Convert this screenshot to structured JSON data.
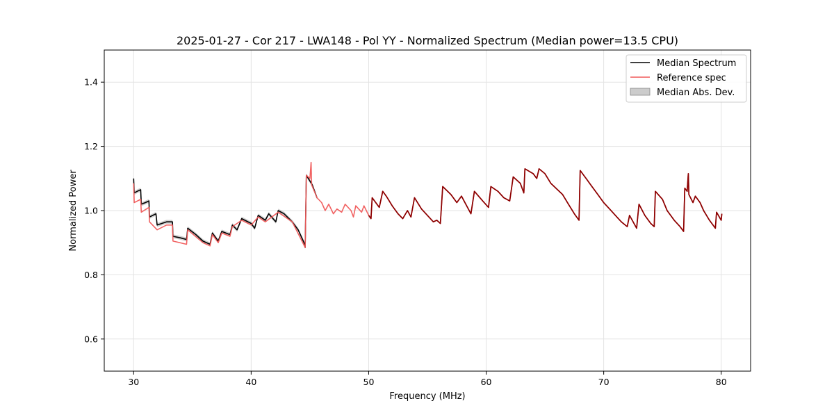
{
  "chart_data": {
    "type": "line",
    "title": "2025-01-27 - Cor 217 - LWA148 - Pol YY - Normalized Spectrum (Median power=13.5 CPU)",
    "xlabel": "Frequency (MHz)",
    "ylabel": "Normalized Power",
    "xlim": [
      27.5,
      82.5
    ],
    "ylim": [
      0.5,
      1.5
    ],
    "xticks": [
      30,
      40,
      50,
      60,
      70,
      80
    ],
    "yticks": [
      0.6,
      0.8,
      1.0,
      1.2,
      1.4
    ],
    "xtick_labels": [
      "30",
      "40",
      "50",
      "60",
      "70",
      "80"
    ],
    "ytick_labels": [
      "0.6",
      "0.8",
      "1.0",
      "1.2",
      "1.4"
    ],
    "grid": true,
    "legend_position": "top-right",
    "legend": {
      "median": "Median Spectrum",
      "reference": "Reference spec",
      "mad": "Median Abs. Dev."
    },
    "colors": {
      "median": "#000000",
      "reference": "#f05a5a",
      "mad_fill": "#aaaaaa",
      "overlap": "#8b0000"
    },
    "series": [
      {
        "name": "Median Spectrum",
        "points": [
          [
            30.0,
            1.1
          ],
          [
            30.05,
            1.055
          ],
          [
            30.3,
            1.06
          ],
          [
            30.6,
            1.065
          ],
          [
            30.65,
            1.02
          ],
          [
            31.0,
            1.025
          ],
          [
            31.3,
            1.03
          ],
          [
            31.35,
            0.98
          ],
          [
            31.9,
            0.99
          ],
          [
            32.0,
            0.955
          ],
          [
            32.8,
            0.965
          ],
          [
            33.3,
            0.965
          ],
          [
            33.35,
            0.92
          ],
          [
            34.0,
            0.915
          ],
          [
            34.5,
            0.91
          ],
          [
            34.6,
            0.945
          ],
          [
            35.3,
            0.925
          ],
          [
            35.9,
            0.905
          ],
          [
            36.5,
            0.895
          ],
          [
            36.7,
            0.93
          ],
          [
            37.2,
            0.905
          ],
          [
            37.5,
            0.935
          ],
          [
            38.2,
            0.925
          ],
          [
            38.4,
            0.955
          ],
          [
            38.8,
            0.94
          ],
          [
            39.2,
            0.975
          ],
          [
            40.0,
            0.96
          ],
          [
            40.3,
            0.945
          ],
          [
            40.6,
            0.985
          ],
          [
            41.2,
            0.97
          ],
          [
            41.5,
            0.99
          ],
          [
            42.1,
            0.965
          ],
          [
            42.3,
            1.0
          ],
          [
            42.8,
            0.99
          ],
          [
            43.5,
            0.965
          ],
          [
            44.0,
            0.94
          ],
          [
            44.5,
            0.9
          ],
          [
            44.6,
            0.885
          ],
          [
            44.7,
            1.11
          ],
          [
            45.2,
            1.08
          ],
          [
            45.6,
            1.04
          ]
        ]
      },
      {
        "name": "Reference spec",
        "points": [
          [
            30.0,
            1.085
          ],
          [
            30.05,
            1.025
          ],
          [
            30.6,
            1.035
          ],
          [
            30.65,
            0.995
          ],
          [
            31.3,
            1.01
          ],
          [
            31.35,
            0.965
          ],
          [
            32.0,
            0.94
          ],
          [
            32.8,
            0.955
          ],
          [
            33.3,
            0.955
          ],
          [
            33.35,
            0.905
          ],
          [
            34.5,
            0.895
          ],
          [
            34.6,
            0.94
          ],
          [
            35.9,
            0.9
          ],
          [
            36.5,
            0.89
          ],
          [
            36.7,
            0.925
          ],
          [
            37.2,
            0.9
          ],
          [
            37.5,
            0.93
          ],
          [
            38.2,
            0.92
          ],
          [
            38.4,
            0.95
          ],
          [
            39.2,
            0.97
          ],
          [
            40.0,
            0.955
          ],
          [
            40.6,
            0.98
          ],
          [
            41.2,
            0.965
          ],
          [
            42.3,
            0.995
          ],
          [
            43.5,
            0.965
          ],
          [
            44.6,
            0.885
          ],
          [
            44.7,
            1.11
          ],
          [
            45.0,
            1.1
          ],
          [
            45.1,
            1.15
          ],
          [
            45.15,
            1.08
          ],
          [
            45.6,
            1.04
          ],
          [
            46.0,
            1.025
          ],
          [
            46.3,
            1.0
          ],
          [
            46.6,
            1.02
          ],
          [
            47.0,
            0.99
          ],
          [
            47.3,
            1.005
          ],
          [
            47.7,
            0.995
          ],
          [
            48.0,
            1.02
          ],
          [
            48.5,
            1.0
          ],
          [
            48.7,
            0.98
          ],
          [
            48.9,
            1.015
          ],
          [
            49.4,
            0.995
          ],
          [
            49.6,
            1.015
          ],
          [
            50.0,
            0.985
          ],
          [
            50.2,
            0.975
          ],
          [
            50.3,
            1.04
          ],
          [
            50.9,
            1.01
          ],
          [
            51.2,
            1.06
          ],
          [
            51.5,
            1.045
          ],
          [
            52.0,
            1.015
          ],
          [
            52.5,
            0.99
          ],
          [
            52.9,
            0.975
          ],
          [
            53.3,
            1.0
          ],
          [
            53.6,
            0.98
          ],
          [
            53.9,
            1.04
          ],
          [
            54.5,
            1.005
          ],
          [
            55.0,
            0.985
          ],
          [
            55.5,
            0.965
          ],
          [
            55.8,
            0.97
          ],
          [
            56.1,
            0.96
          ],
          [
            56.3,
            1.075
          ],
          [
            57.0,
            1.05
          ],
          [
            57.5,
            1.025
          ],
          [
            57.9,
            1.045
          ],
          [
            58.7,
            0.99
          ],
          [
            59.0,
            1.06
          ],
          [
            59.7,
            1.03
          ],
          [
            60.2,
            1.01
          ],
          [
            60.4,
            1.075
          ],
          [
            61.0,
            1.06
          ],
          [
            61.5,
            1.04
          ],
          [
            62.0,
            1.03
          ],
          [
            62.3,
            1.105
          ],
          [
            62.9,
            1.085
          ],
          [
            63.2,
            1.055
          ],
          [
            63.3,
            1.13
          ],
          [
            64.0,
            1.115
          ],
          [
            64.3,
            1.1
          ],
          [
            64.5,
            1.13
          ],
          [
            65.0,
            1.115
          ],
          [
            65.5,
            1.085
          ],
          [
            66.5,
            1.05
          ],
          [
            67.0,
            1.02
          ],
          [
            67.5,
            0.99
          ],
          [
            67.9,
            0.97
          ],
          [
            68.0,
            1.125
          ],
          [
            68.5,
            1.1
          ],
          [
            69.0,
            1.075
          ],
          [
            69.5,
            1.05
          ],
          [
            70.0,
            1.025
          ],
          [
            70.5,
            1.005
          ],
          [
            71.0,
            0.985
          ],
          [
            71.5,
            0.965
          ],
          [
            72.0,
            0.95
          ],
          [
            72.2,
            0.985
          ],
          [
            72.8,
            0.945
          ],
          [
            73.0,
            1.02
          ],
          [
            73.5,
            0.985
          ],
          [
            74.0,
            0.96
          ],
          [
            74.3,
            0.95
          ],
          [
            74.4,
            1.06
          ],
          [
            75.0,
            1.035
          ],
          [
            75.4,
            1.0
          ],
          [
            76.0,
            0.97
          ],
          [
            76.5,
            0.95
          ],
          [
            76.8,
            0.935
          ],
          [
            76.9,
            1.07
          ],
          [
            77.1,
            1.06
          ],
          [
            77.2,
            1.115
          ],
          [
            77.25,
            1.05
          ],
          [
            77.6,
            1.025
          ],
          [
            77.8,
            1.045
          ],
          [
            78.2,
            1.025
          ],
          [
            78.5,
            1.0
          ],
          [
            79.0,
            0.97
          ],
          [
            79.5,
            0.945
          ],
          [
            79.6,
            0.995
          ],
          [
            80.0,
            0.97
          ],
          [
            80.05,
            0.99
          ]
        ]
      }
    ]
  }
}
